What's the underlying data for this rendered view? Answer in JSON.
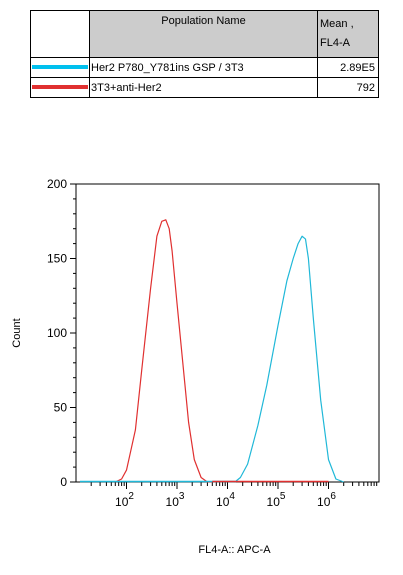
{
  "table": {
    "header_name": "Population Name",
    "header_mean": "Mean ,\nFL4-A",
    "rows": [
      {
        "name": "Her2 P780_Y781ins GSP / 3T3",
        "mean": "2.89E5",
        "color": "#00c0ee"
      },
      {
        "name": "3T3+anti-Her2",
        "mean": "792",
        "color": "#e03030"
      }
    ]
  },
  "chart_data": {
    "type": "line",
    "xlabel": "FL4-A:: APC-A",
    "ylabel": "Count",
    "x_scale": "log",
    "xlim": [
      10,
      10000000.0
    ],
    "ylim": [
      0,
      200
    ],
    "y_ticks": [
      "0",
      "50",
      "100",
      "150",
      "200"
    ],
    "x_ticks": [
      {
        "base": "10",
        "exp": "2",
        "value": 100
      },
      {
        "base": "10",
        "exp": "3",
        "value": 1000
      },
      {
        "base": "10",
        "exp": "4",
        "value": 10000
      },
      {
        "base": "10",
        "exp": "5",
        "value": 100000
      },
      {
        "base": "10",
        "exp": "6",
        "value": 1000000
      }
    ],
    "series": [
      {
        "color": "#e03030",
        "x": [
          60,
          80,
          100,
          150,
          200,
          300,
          400,
          500,
          600,
          700,
          800,
          1000,
          1300,
          1700,
          2200,
          3000,
          4000,
          5000
        ],
        "y": [
          0,
          2,
          8,
          35,
          75,
          130,
          165,
          175,
          176,
          170,
          155,
          120,
          80,
          40,
          15,
          3,
          0,
          0
        ]
      },
      {
        "color": "#20b8d8",
        "x": [
          14000,
          18000,
          25000,
          40000,
          60000,
          100000,
          150000,
          200000,
          250000,
          300000,
          350000,
          400000,
          500000,
          700000,
          1000000,
          1400000,
          2000000
        ],
        "y": [
          0,
          3,
          12,
          38,
          65,
          105,
          135,
          150,
          160,
          165,
          163,
          150,
          110,
          55,
          15,
          2,
          0
        ]
      }
    ]
  }
}
